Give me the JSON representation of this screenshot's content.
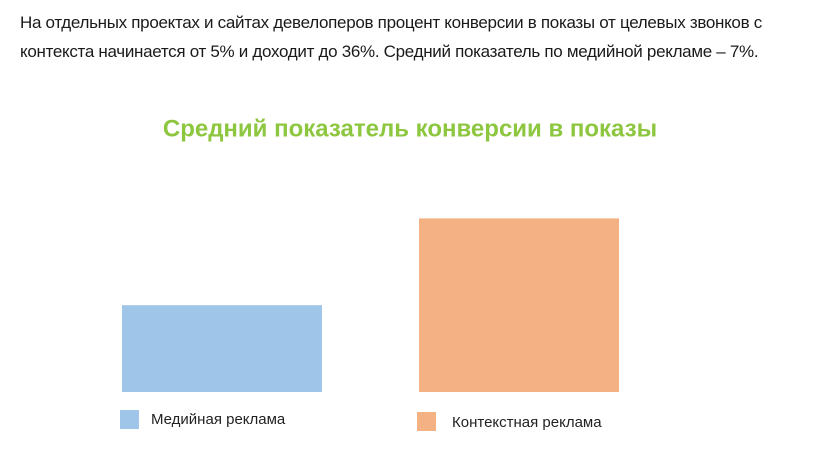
{
  "paragraph": "На отдельных проектах и сайтах девелоперов процент конверсии в показы от целевых звонков с контекста начинается от 5% и доходит до 36%. Средний показатель по медийной рекламе – 7%.",
  "chart_data": {
    "type": "bar",
    "title": "Средний показатель конверсии в показы",
    "series": [
      {
        "name": "Медийная реклама",
        "color": "#9fc5e8",
        "values": [
          7
        ]
      },
      {
        "name": "Контекстная реклама",
        "color": "#f4b183",
        "values": [
          14
        ]
      }
    ]
  }
}
